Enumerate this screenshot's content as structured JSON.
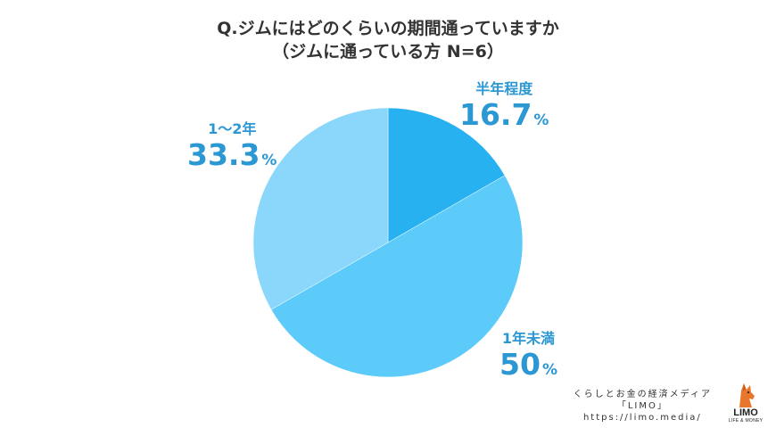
{
  "chart_data": {
    "type": "pie",
    "title": "Q.ジムにはどのくらいの期間通っていますか",
    "subtitle": "（ジムに通っている方 N=6）",
    "categories": [
      "半年程度",
      "1年未満",
      "1～2年"
    ],
    "values": [
      16.7,
      50,
      33.3
    ],
    "value_labels": [
      "16.7",
      "50",
      "33.3"
    ],
    "unit": "%",
    "colors": [
      "#27b1f0",
      "#5ccbfa",
      "#8ad7fb"
    ]
  },
  "footer": {
    "line1": "くらしとお金の経済メディア",
    "line2": "「LIMO」",
    "line3": "https://limo.media/"
  },
  "logo": {
    "name": "LIMO",
    "tagline": "LIFE & MONEY"
  }
}
